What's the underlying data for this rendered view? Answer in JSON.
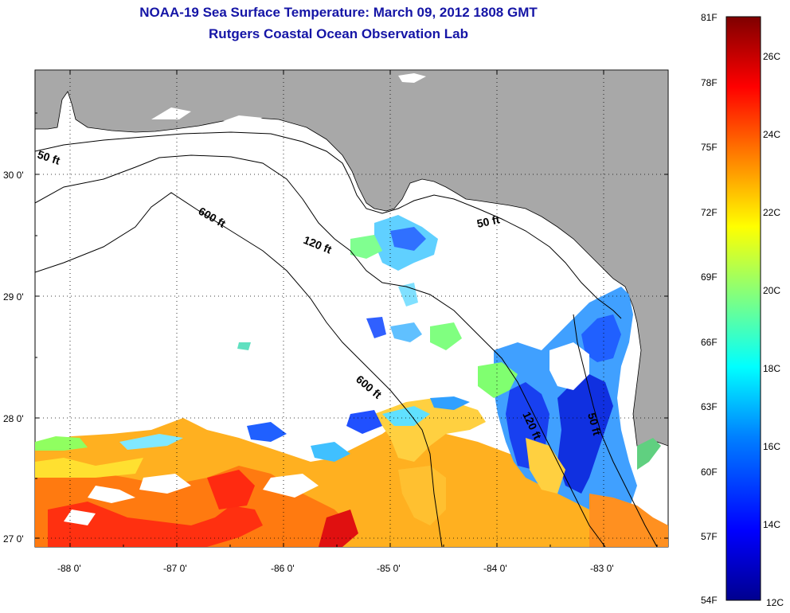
{
  "title": {
    "line1": "NOAA-19 Sea Surface Temperature:  March 09, 2012 1808 GMT",
    "line2": "Rutgers Coastal Ocean Observation Lab"
  },
  "map": {
    "lon_labels": [
      "-88 0'",
      "-87 0'",
      "-86 0'",
      "-85 0'",
      "-84 0'",
      "-83 0'"
    ],
    "lat_labels": [
      "30 0'",
      "29 0'",
      "28 0'",
      "27 0'"
    ],
    "contour_labels": [
      "50 ft",
      "600 ft",
      "120 ft",
      "50 ft",
      "600 ft",
      "120 ft",
      "50 ft"
    ],
    "land_color": "#a8a8a8",
    "ocean_color": "#ffffff"
  },
  "colorbar": {
    "f_labels": [
      "81F",
      "78F",
      "75F",
      "72F",
      "69F",
      "66F",
      "63F",
      "60F",
      "57F",
      "54F"
    ],
    "c_labels": [
      "26C",
      "24C",
      "22C",
      "20C",
      "18C",
      "16C",
      "14C",
      "12C"
    ],
    "colors": [
      "#7f0000",
      "#ff0000",
      "#ff8000",
      "#ffff00",
      "#80ff80",
      "#00ffff",
      "#0080ff",
      "#0000ff",
      "#00008f"
    ]
  }
}
